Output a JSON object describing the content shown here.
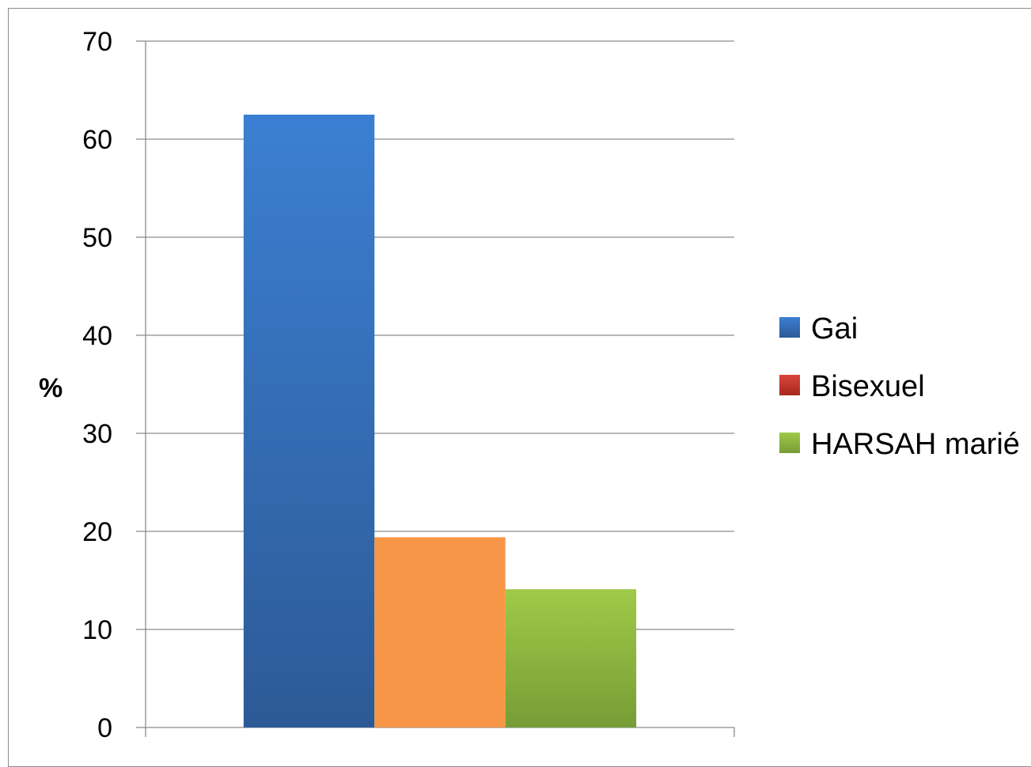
{
  "chart_data": {
    "type": "bar",
    "categories": [
      ""
    ],
    "series": [
      {
        "name": "Gai",
        "values": [
          62.5
        ],
        "color": "#3A79C8"
      },
      {
        "name": "Bisexuel",
        "values": [
          19.4
        ],
        "color": "#F79646"
      },
      {
        "name": "HARSAH marié",
        "values": [
          14.1
        ],
        "color": "#8DB842"
      }
    ],
    "legend_colors": [
      "#2F5E9E",
      "#C0392B",
      "#7DA83A"
    ],
    "title": "",
    "xlabel": "",
    "ylabel": "%",
    "ylim": [
      0,
      70
    ],
    "yticks": [
      "0",
      "10",
      "20",
      "30",
      "40",
      "50",
      "60",
      "70"
    ],
    "grid": true,
    "legend_position": "right"
  }
}
